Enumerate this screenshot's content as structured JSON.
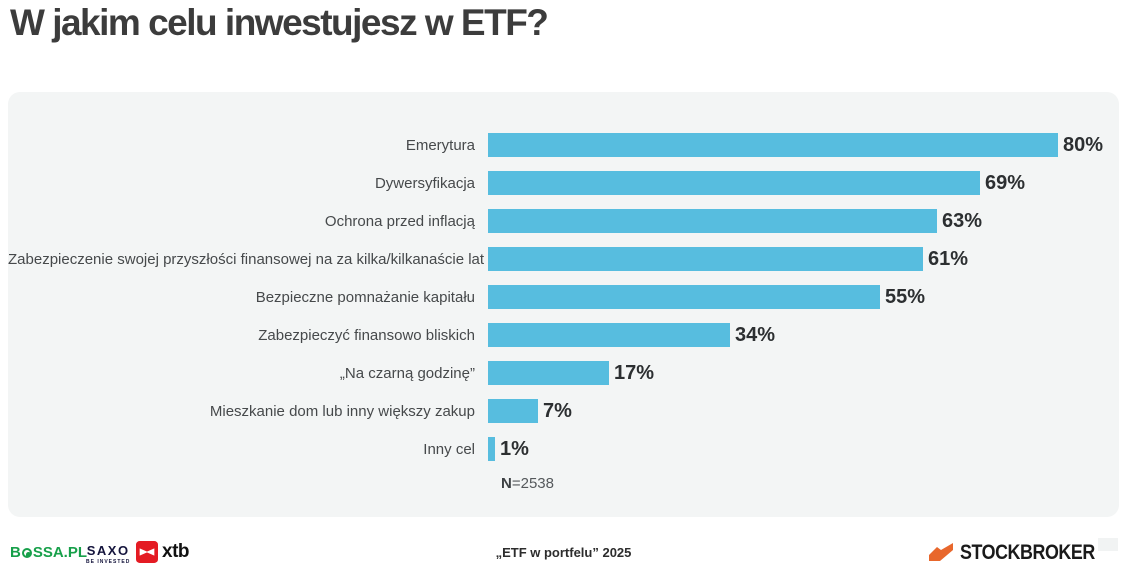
{
  "page": {
    "title": "W jakim celu inwestujesz w ETF?"
  },
  "chart_data": {
    "type": "bar",
    "orientation": "horizontal",
    "title": "W jakim celu inwestujesz w ETF?",
    "categories": [
      "Emerytura",
      "Dywersyfikacja",
      "Ochrona przed inflacją",
      "Zabezpieczenie swojej przyszłości finansowej na za kilka/kilkanaście lat",
      "Bezpieczne pomnażanie kapitału",
      "Zabezpieczyć finansowo bliskich",
      "„Na czarną godzinę”",
      "Mieszkanie dom lub inny większy zakup",
      "Inny cel"
    ],
    "values": [
      80,
      69,
      63,
      61,
      55,
      34,
      17,
      7,
      1
    ],
    "value_labels": [
      "80%",
      "69%",
      "63%",
      "61%",
      "55%",
      "34%",
      "17%",
      "7%",
      "1%"
    ],
    "unit": "%",
    "xlim": [
      0,
      100
    ],
    "grid": false,
    "legend": false,
    "bar_color": "#57BDDF",
    "sample_size": {
      "label": "N",
      "value": "=2538"
    }
  },
  "footer": {
    "bossa": {
      "part1": "B",
      "part2": "SSA.PL"
    },
    "saxo": {
      "name": "SAXO",
      "tagline": "BE INVESTED"
    },
    "xtb": {
      "name": "xtb"
    },
    "source": "„ETF w portfelu” 2025",
    "stockbroker": {
      "name": "STOCKBROKER"
    }
  },
  "colors": {
    "bar": "#57BDDF",
    "panel_bg": "#F3F5F5",
    "bossa_green": "#17A04A",
    "saxo_navy": "#14143C",
    "xtb_red": "#E41B23",
    "stockbroker_orange": "#E8672C"
  }
}
